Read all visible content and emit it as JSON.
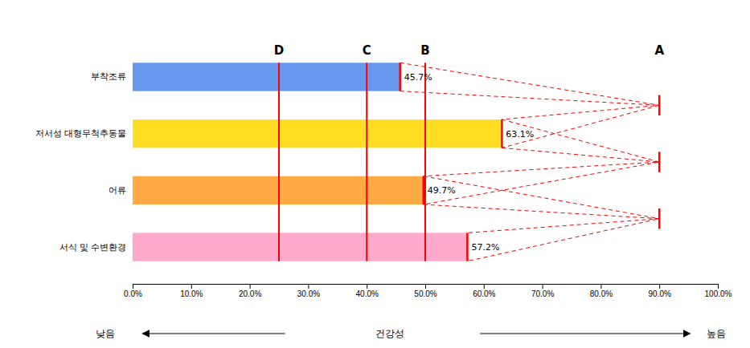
{
  "chart_data": {
    "type": "bar",
    "orientation": "horizontal",
    "categories": [
      "부착조류",
      "저서성 대형무척추동물",
      "어류",
      "서식 및 수변환경"
    ],
    "values": [
      45.7,
      63.1,
      49.7,
      57.2
    ],
    "value_labels": [
      "45.7%",
      "63.1%",
      "49.7%",
      "57.2%"
    ],
    "data_labels": true,
    "colors": [
      "#6699ee",
      "#ffdd22",
      "#ffaa44",
      "#ffaacc"
    ],
    "xlim": [
      0.0,
      100.0
    ],
    "xticks": [
      {
        "value": 0.0,
        "label": "0.0%"
      },
      {
        "value": 10.0,
        "label": "10.0%"
      },
      {
        "value": 20.0,
        "label": "20.0%"
      },
      {
        "value": 30.0,
        "label": "30.0%"
      },
      {
        "value": 40.0,
        "label": "40.0%"
      },
      {
        "value": 50.0,
        "label": "50.0%"
      },
      {
        "value": 60.0,
        "label": "60.0%"
      },
      {
        "value": 70.0,
        "label": "70.0%"
      },
      {
        "value": 80.0,
        "label": "80.0%"
      },
      {
        "value": 90.0,
        "label": "90.0%"
      },
      {
        "value": 100.0,
        "label": "100.0%"
      }
    ],
    "grid": false,
    "grade_lines": [
      {
        "label": "D",
        "value": 25.0,
        "color": "red"
      },
      {
        "label": "C",
        "value": 40.0,
        "color": "red"
      },
      {
        "label": "B",
        "value": 50.0,
        "color": "red"
      }
    ],
    "vertex": {
      "label": "A",
      "value": 90.0,
      "color": "red",
      "line_style": "dashed"
    },
    "bottom_labels": [
      "낮음",
      "건강성",
      "높음"
    ]
  }
}
